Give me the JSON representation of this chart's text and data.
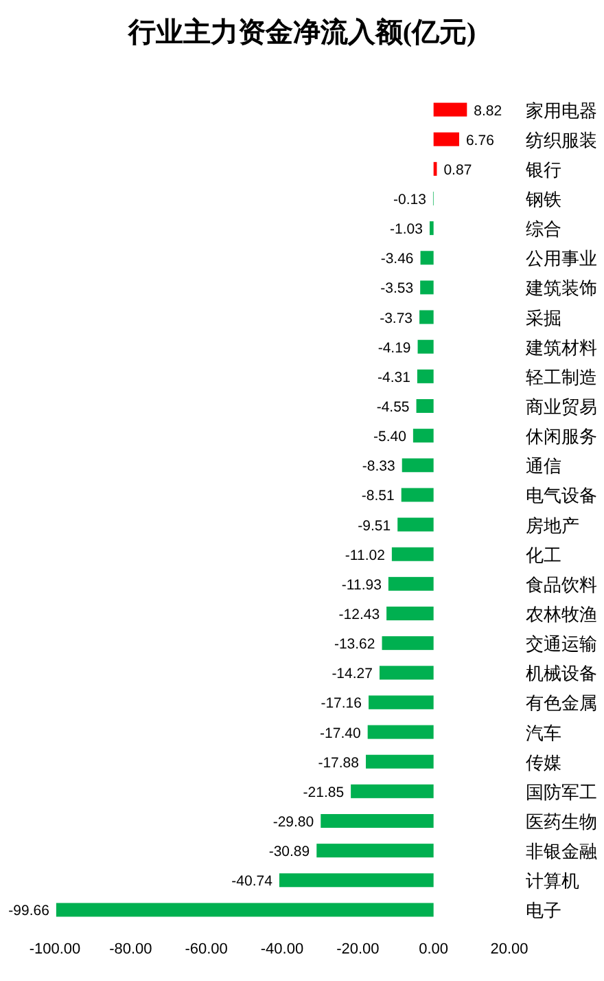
{
  "chart_data": {
    "type": "bar",
    "orientation": "horizontal",
    "title": "行业主力资金净流入额(亿元)",
    "categories": [
      "家用电器",
      "纺织服装",
      "银行",
      "钢铁",
      "综合",
      "公用事业",
      "建筑装饰",
      "采掘",
      "建筑材料",
      "轻工制造",
      "商业贸易",
      "休闲服务",
      "通信",
      "电气设备",
      "房地产",
      "化工",
      "食品饮料",
      "农林牧渔",
      "交通运输",
      "机械设备",
      "有色金属",
      "汽车",
      "传媒",
      "国防军工",
      "医药生物",
      "非银金融",
      "计算机",
      "电子"
    ],
    "values": [
      8.82,
      6.76,
      0.87,
      -0.13,
      -1.03,
      -3.46,
      -3.53,
      -3.73,
      -4.19,
      -4.31,
      -4.55,
      -5.4,
      -8.33,
      -8.51,
      -9.51,
      -11.02,
      -11.93,
      -12.43,
      -13.62,
      -14.27,
      -17.16,
      -17.4,
      -17.88,
      -21.85,
      -29.8,
      -30.89,
      -40.74,
      -99.66
    ],
    "value_labels": [
      "8.82",
      "6.76",
      "0.87",
      "-0.13",
      "-1.03",
      "-3.46",
      "-3.53",
      "-3.73",
      "-4.19",
      "-4.31",
      "-4.55",
      "-5.40",
      "-8.33",
      "-8.51",
      "-9.51",
      "-11.02",
      "-11.93",
      "-12.43",
      "-13.62",
      "-14.27",
      "-17.16",
      "-17.40",
      "-17.88",
      "-21.85",
      "-29.80",
      "-30.89",
      "-40.74",
      "-99.66"
    ],
    "colors": [
      "#ff0000",
      "#ff0000",
      "#ff0000",
      "#00b050",
      "#00b050",
      "#00b050",
      "#00b050",
      "#00b050",
      "#00b050",
      "#00b050",
      "#00b050",
      "#00b050",
      "#00b050",
      "#00b050",
      "#00b050",
      "#00b050",
      "#00b050",
      "#00b050",
      "#00b050",
      "#00b050",
      "#00b050",
      "#00b050",
      "#00b050",
      "#00b050",
      "#00b050",
      "#00b050",
      "#00b050",
      "#00b050"
    ],
    "xlim": [
      -100,
      20
    ],
    "xticks": [
      {
        "value": -100,
        "label": "-100.00"
      },
      {
        "value": -80,
        "label": "-80.00"
      },
      {
        "value": -60,
        "label": "-60.00"
      },
      {
        "value": -40,
        "label": "-40.00"
      },
      {
        "value": -20,
        "label": "-20.00"
      },
      {
        "value": 0,
        "label": "0.00"
      },
      {
        "value": 20,
        "label": "20.00"
      }
    ]
  }
}
